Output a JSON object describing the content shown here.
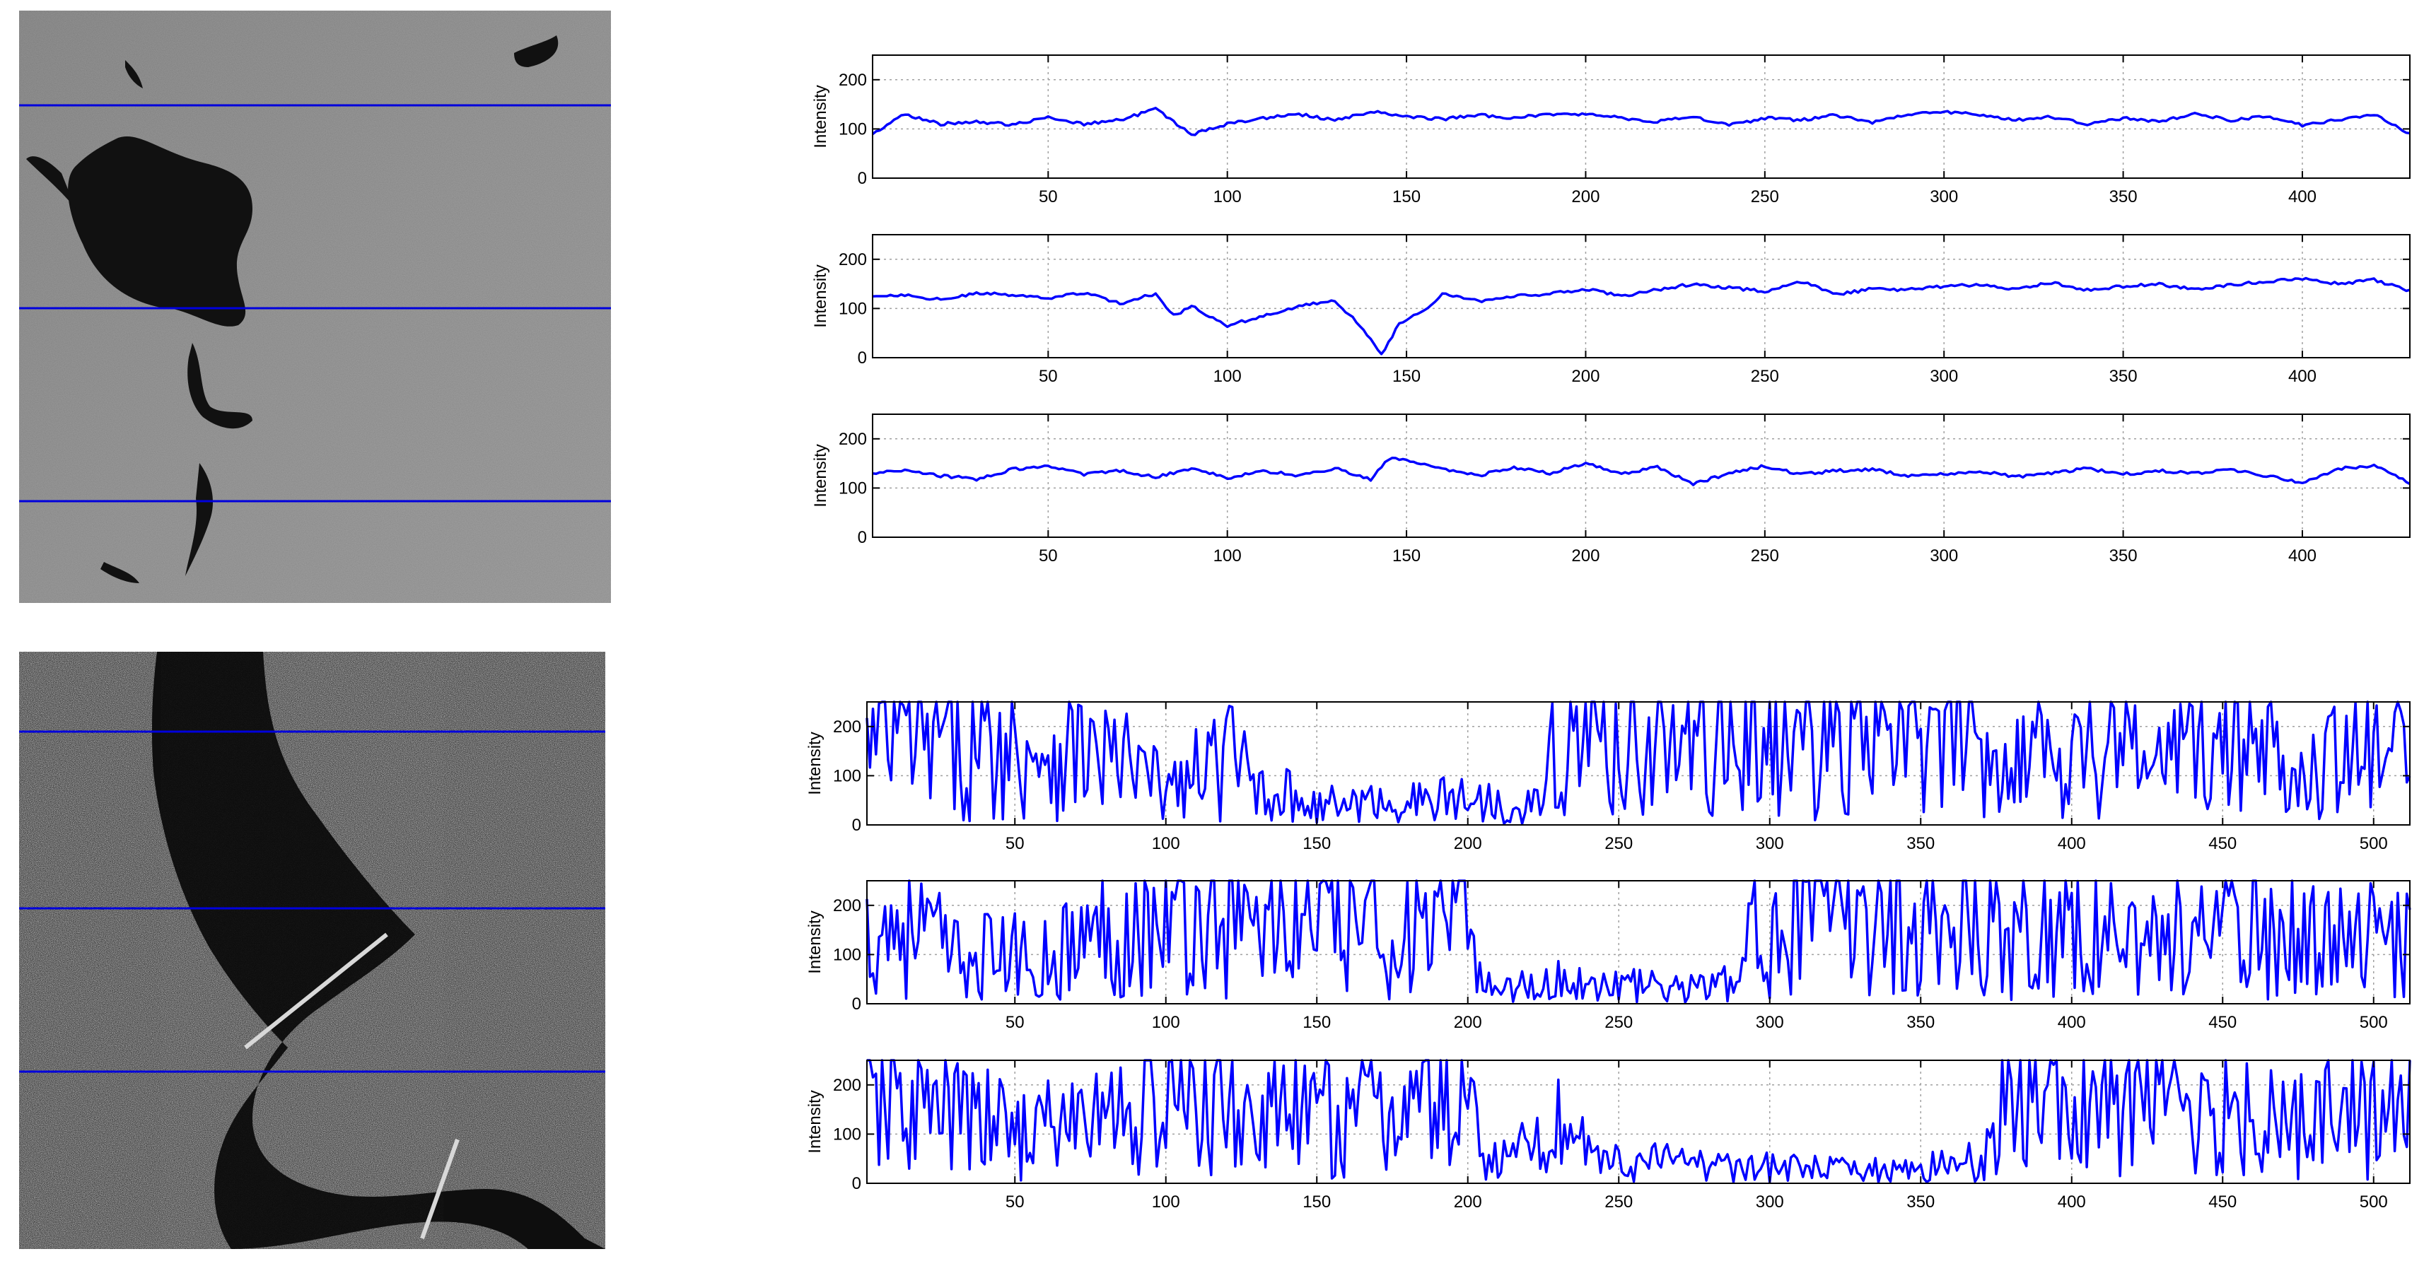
{
  "colors": {
    "line": "#0000ff",
    "profile_line": "#0000dd",
    "grid": "#a0a0a0",
    "axes": "#000000"
  },
  "images": [
    {
      "name": "oil-spill-sar-image",
      "description_semantic": "grey sea surface with dark slick",
      "profile_rows": [
        0.16,
        0.5,
        0.82
      ]
    },
    {
      "name": "river-sar-image",
      "description_semantic": "speckled land with dark river",
      "profile_rows": [
        0.14,
        0.43,
        0.71
      ]
    }
  ],
  "chart_data": [
    {
      "type": "line",
      "group": 0,
      "ylabel": "Intensity",
      "xlim": [
        1,
        430
      ],
      "ylim": [
        0,
        250
      ],
      "xticks": [
        50,
        100,
        150,
        200,
        250,
        300,
        350,
        400
      ],
      "yticks": [
        0,
        100,
        200
      ],
      "grid": true,
      "series": [
        {
          "pattern": "smooth",
          "x": [
            1,
            10,
            20,
            30,
            40,
            50,
            60,
            70,
            80,
            90,
            100,
            110,
            120,
            130,
            140,
            150,
            160,
            170,
            180,
            190,
            200,
            210,
            220,
            230,
            240,
            250,
            260,
            270,
            280,
            290,
            300,
            310,
            320,
            330,
            340,
            350,
            360,
            370,
            380,
            390,
            400,
            410,
            420,
            430
          ],
          "values": [
            90,
            130,
            110,
            115,
            108,
            125,
            110,
            118,
            140,
            88,
            110,
            122,
            130,
            118,
            135,
            125,
            120,
            128,
            122,
            130,
            130,
            122,
            115,
            125,
            108,
            122,
            118,
            128,
            112,
            130,
            135,
            128,
            118,
            125,
            110,
            122,
            115,
            130,
            118,
            125,
            108,
            118,
            130,
            90
          ]
        }
      ]
    },
    {
      "type": "line",
      "group": 0,
      "ylabel": "Intensity",
      "xlim": [
        1,
        430
      ],
      "ylim": [
        0,
        250
      ],
      "xticks": [
        50,
        100,
        150,
        200,
        250,
        300,
        350,
        400
      ],
      "yticks": [
        0,
        100,
        200
      ],
      "grid": true,
      "series": [
        {
          "pattern": "smooth",
          "x": [
            1,
            10,
            20,
            30,
            40,
            50,
            60,
            70,
            80,
            85,
            90,
            100,
            110,
            120,
            130,
            135,
            140,
            143,
            148,
            155,
            160,
            170,
            180,
            190,
            200,
            210,
            220,
            230,
            240,
            250,
            260,
            270,
            280,
            290,
            300,
            310,
            320,
            330,
            340,
            350,
            360,
            370,
            380,
            390,
            400,
            410,
            420,
            430
          ],
          "values": [
            125,
            128,
            118,
            130,
            128,
            120,
            132,
            110,
            130,
            85,
            105,
            65,
            85,
            105,
            115,
            80,
            40,
            5,
            70,
            95,
            130,
            115,
            125,
            130,
            140,
            125,
            138,
            150,
            142,
            135,
            155,
            128,
            140,
            138,
            145,
            148,
            140,
            152,
            138,
            145,
            150,
            138,
            148,
            155,
            160,
            150,
            158,
            135
          ]
        }
      ]
    },
    {
      "type": "line",
      "group": 0,
      "ylabel": "Intensity",
      "xlim": [
        1,
        430
      ],
      "ylim": [
        0,
        250
      ],
      "xticks": [
        50,
        100,
        150,
        200,
        250,
        300,
        350,
        400
      ],
      "yticks": [
        0,
        100,
        200
      ],
      "grid": true,
      "series": [
        {
          "pattern": "smooth",
          "x": [
            1,
            10,
            20,
            30,
            40,
            50,
            60,
            70,
            80,
            90,
            100,
            110,
            120,
            130,
            140,
            145,
            150,
            160,
            170,
            180,
            190,
            200,
            210,
            220,
            230,
            240,
            250,
            260,
            270,
            280,
            290,
            300,
            310,
            320,
            330,
            340,
            350,
            360,
            370,
            380,
            390,
            400,
            410,
            420,
            430
          ],
          "values": [
            130,
            135,
            125,
            118,
            138,
            145,
            128,
            135,
            122,
            140,
            120,
            135,
            125,
            140,
            118,
            160,
            155,
            140,
            125,
            142,
            130,
            150,
            128,
            142,
            108,
            130,
            145,
            128,
            135,
            138,
            125,
            128,
            135,
            122,
            130,
            140,
            128,
            135,
            130,
            138,
            125,
            110,
            140,
            145,
            110
          ]
        }
      ]
    },
    {
      "type": "line",
      "group": 1,
      "ylabel": "Intensity",
      "xlim": [
        1,
        512
      ],
      "ylim": [
        0,
        250
      ],
      "xticks": [
        50,
        100,
        150,
        200,
        250,
        300,
        350,
        400,
        450,
        500
      ],
      "yticks": [
        0,
        100,
        200
      ],
      "grid": true,
      "series": [
        {
          "pattern": "noisy",
          "x": [
            1,
            10,
            20,
            40,
            60,
            80,
            90,
            100,
            110,
            120,
            130,
            140,
            150,
            170,
            190,
            200,
            215,
            225,
            230,
            240,
            260,
            280,
            300,
            320,
            340,
            360,
            380,
            400,
            420,
            440,
            460,
            480,
            500,
            512
          ],
          "values": [
            150,
            170,
            160,
            150,
            160,
            140,
            110,
            70,
            100,
            140,
            90,
            60,
            40,
            45,
            50,
            55,
            40,
            50,
            180,
            175,
            160,
            165,
            170,
            175,
            170,
            160,
            150,
            165,
            150,
            145,
            155,
            140,
            130,
            150
          ]
        }
      ]
    },
    {
      "type": "line",
      "group": 1,
      "ylabel": "Intensity",
      "xlim": [
        1,
        512
      ],
      "ylim": [
        0,
        250
      ],
      "xticks": [
        50,
        100,
        150,
        200,
        250,
        300,
        350,
        400,
        450,
        500
      ],
      "yticks": [
        0,
        100,
        200
      ],
      "grid": true,
      "series": [
        {
          "pattern": "noisy",
          "x": [
            1,
            10,
            20,
            30,
            40,
            60,
            80,
            100,
            120,
            140,
            160,
            180,
            200,
            205,
            210,
            230,
            250,
            270,
            290,
            295,
            300,
            320,
            340,
            360,
            380,
            400,
            420,
            440,
            460,
            480,
            500,
            512
          ],
          "values": [
            140,
            170,
            150,
            90,
            100,
            90,
            150,
            160,
            170,
            165,
            160,
            140,
            150,
            60,
            30,
            45,
            40,
            30,
            45,
            150,
            180,
            170,
            175,
            170,
            160,
            140,
            130,
            145,
            140,
            135,
            130,
            150
          ]
        }
      ]
    },
    {
      "type": "line",
      "group": 1,
      "ylabel": "Intensity",
      "xlim": [
        1,
        512
      ],
      "ylim": [
        0,
        250
      ],
      "xticks": [
        50,
        100,
        150,
        200,
        250,
        300,
        350,
        400,
        450,
        500
      ],
      "yticks": [
        0,
        100,
        200
      ],
      "grid": true,
      "series": [
        {
          "pattern": "noisy",
          "x": [
            1,
            10,
            20,
            40,
            60,
            80,
            100,
            120,
            140,
            160,
            180,
            200,
            205,
            210,
            230,
            240,
            250,
            270,
            290,
            310,
            330,
            350,
            370,
            375,
            380,
            400,
            420,
            440,
            460,
            480,
            500,
            512
          ],
          "values": [
            180,
            170,
            150,
            120,
            110,
            140,
            160,
            150,
            130,
            140,
            150,
            160,
            80,
            40,
            120,
            80,
            40,
            45,
            35,
            30,
            25,
            30,
            45,
            130,
            170,
            175,
            165,
            150,
            140,
            145,
            130,
            140
          ]
        }
      ]
    }
  ]
}
